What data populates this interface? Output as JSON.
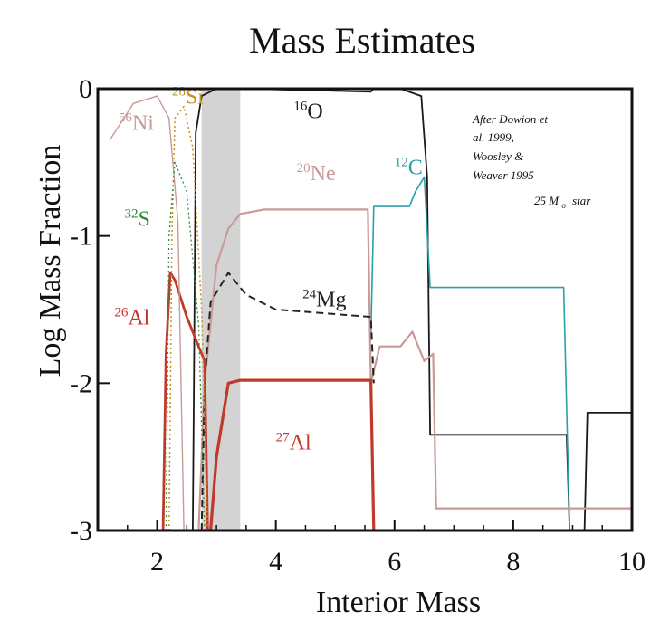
{
  "chart_data": {
    "type": "line",
    "title": "Mass Estimates",
    "xlabel": "Interior Mass",
    "ylabel": "Log Mass Fraction",
    "xlim": [
      1,
      10
    ],
    "ylim": [
      -3,
      0
    ],
    "x_ticks": [
      2,
      4,
      6,
      8,
      10
    ],
    "y_ticks": [
      {
        "value": 0,
        "label": "0"
      },
      {
        "value": -1,
        "label": "-1"
      },
      {
        "value": -2,
        "label": "-2"
      },
      {
        "value": -3,
        "label": "-3"
      }
    ],
    "annotation": {
      "lines": [
        "After Dowion et",
        "al. 1999,",
        "Woosley &",
        "Weaver 1995"
      ],
      "star_mass": "25",
      "star_unit": "M",
      "star_sub": "o",
      "star_word": "star"
    },
    "shaded_region": {
      "x": [
        2.75,
        3.4
      ],
      "color": "#c8c8c8"
    },
    "series": [
      {
        "name": "O",
        "mass_number": "16",
        "color": "#1a1a1a",
        "width": 1.8,
        "label_at": {
          "x": 4.3,
          "y": -0.2
        },
        "points": [
          [
            2.6,
            -3
          ],
          [
            2.62,
            -2.0
          ],
          [
            2.65,
            -0.3
          ],
          [
            2.75,
            -0.05
          ],
          [
            3.0,
            0.0
          ],
          [
            3.5,
            0.0
          ],
          [
            5.6,
            -0.02
          ],
          [
            5.65,
            0.0
          ],
          [
            6.1,
            0.0
          ],
          [
            6.45,
            -0.05
          ],
          [
            6.55,
            -0.6
          ],
          [
            6.6,
            -2.35
          ],
          [
            8.9,
            -2.35
          ],
          [
            8.95,
            -3.0
          ],
          [
            9.2,
            -3.0
          ],
          [
            9.25,
            -2.2
          ],
          [
            10,
            -2.2
          ]
        ]
      },
      {
        "name": "C",
        "mass_number": "12",
        "color": "#2aa0a8",
        "width": 1.6,
        "label_at": {
          "x": 6.0,
          "y": -0.58
        },
        "points": [
          [
            5.6,
            -1.7
          ],
          [
            5.65,
            -0.8
          ],
          [
            6.25,
            -0.8
          ],
          [
            6.35,
            -0.7
          ],
          [
            6.5,
            -0.6
          ],
          [
            6.6,
            -1.35
          ],
          [
            8.85,
            -1.35
          ],
          [
            8.95,
            -3.0
          ]
        ]
      },
      {
        "name": "Ne",
        "mass_number": "20",
        "color": "#c89a98",
        "width": 2.2,
        "label_at": {
          "x": 4.35,
          "y": -0.62
        },
        "points": [
          [
            2.7,
            -3
          ],
          [
            2.8,
            -2.0
          ],
          [
            3.0,
            -1.2
          ],
          [
            3.2,
            -0.95
          ],
          [
            3.4,
            -0.85
          ],
          [
            3.8,
            -0.82
          ],
          [
            5.55,
            -0.82
          ],
          [
            5.6,
            -2.0
          ],
          [
            5.75,
            -1.75
          ],
          [
            6.1,
            -1.75
          ],
          [
            6.3,
            -1.65
          ],
          [
            6.5,
            -1.85
          ],
          [
            6.65,
            -1.8
          ],
          [
            6.7,
            -2.85
          ],
          [
            10,
            -2.85
          ]
        ]
      },
      {
        "name": "Mg",
        "mass_number": "24",
        "color": "#222222",
        "width": 2,
        "dashed": true,
        "label_at": {
          "x": 4.45,
          "y": -1.48
        },
        "points": [
          [
            2.75,
            -3
          ],
          [
            2.8,
            -2.0
          ],
          [
            2.9,
            -1.45
          ],
          [
            3.2,
            -1.25
          ],
          [
            3.5,
            -1.4
          ],
          [
            4.0,
            -1.5
          ],
          [
            5.6,
            -1.55
          ],
          [
            5.65,
            -2.0
          ]
        ]
      },
      {
        "name": "Al",
        "mass_number": "27",
        "color": "#c0392b",
        "width": 3.2,
        "label_at": {
          "x": 4.0,
          "y": -2.45
        },
        "points": [
          [
            2.9,
            -3
          ],
          [
            3.0,
            -2.5
          ],
          [
            3.1,
            -2.25
          ],
          [
            3.2,
            -2.0
          ],
          [
            3.4,
            -1.98
          ],
          [
            5.6,
            -1.98
          ],
          [
            5.65,
            -3.0
          ]
        ]
      },
      {
        "name": "Al",
        "mass_number": "26",
        "color": "#c0392b",
        "width": 2.8,
        "label_at": {
          "x": 1.28,
          "y": -1.6
        },
        "points": [
          [
            2.1,
            -3
          ],
          [
            2.15,
            -1.8
          ],
          [
            2.22,
            -1.25
          ],
          [
            2.3,
            -1.3
          ],
          [
            2.5,
            -1.55
          ],
          [
            2.7,
            -1.75
          ],
          [
            2.8,
            -1.85
          ],
          [
            2.85,
            -3.0
          ]
        ]
      },
      {
        "name": "Si",
        "mass_number": "28",
        "color": "#c8901a",
        "width": 1.5,
        "dotted": true,
        "label_at": {
          "x": 2.25,
          "y": -0.1
        },
        "points": [
          [
            2.2,
            -3
          ],
          [
            2.25,
            -1.0
          ],
          [
            2.3,
            -0.2
          ],
          [
            2.45,
            -0.12
          ],
          [
            2.6,
            -0.4
          ],
          [
            2.75,
            -1.5
          ],
          [
            2.85,
            -3.0
          ]
        ]
      },
      {
        "name": "Ni",
        "mass_number": "56",
        "color": "#c89a98",
        "width": 1.4,
        "label_at": {
          "x": 1.35,
          "y": -0.28
        },
        "points": [
          [
            1.2,
            -0.35
          ],
          [
            1.6,
            -0.1
          ],
          [
            2.0,
            -0.05
          ],
          [
            2.2,
            -0.2
          ],
          [
            2.35,
            -0.9
          ],
          [
            2.45,
            -3.0
          ]
        ]
      },
      {
        "name": "S",
        "mass_number": "32",
        "color": "#2e8b3a",
        "width": 1.3,
        "dotted": true,
        "label_at": {
          "x": 1.45,
          "y": -0.93
        },
        "points": [
          [
            2.15,
            -3
          ],
          [
            2.2,
            -1.0
          ],
          [
            2.3,
            -0.5
          ],
          [
            2.5,
            -0.7
          ],
          [
            2.7,
            -1.6
          ],
          [
            2.8,
            -3.0
          ]
        ]
      }
    ]
  }
}
